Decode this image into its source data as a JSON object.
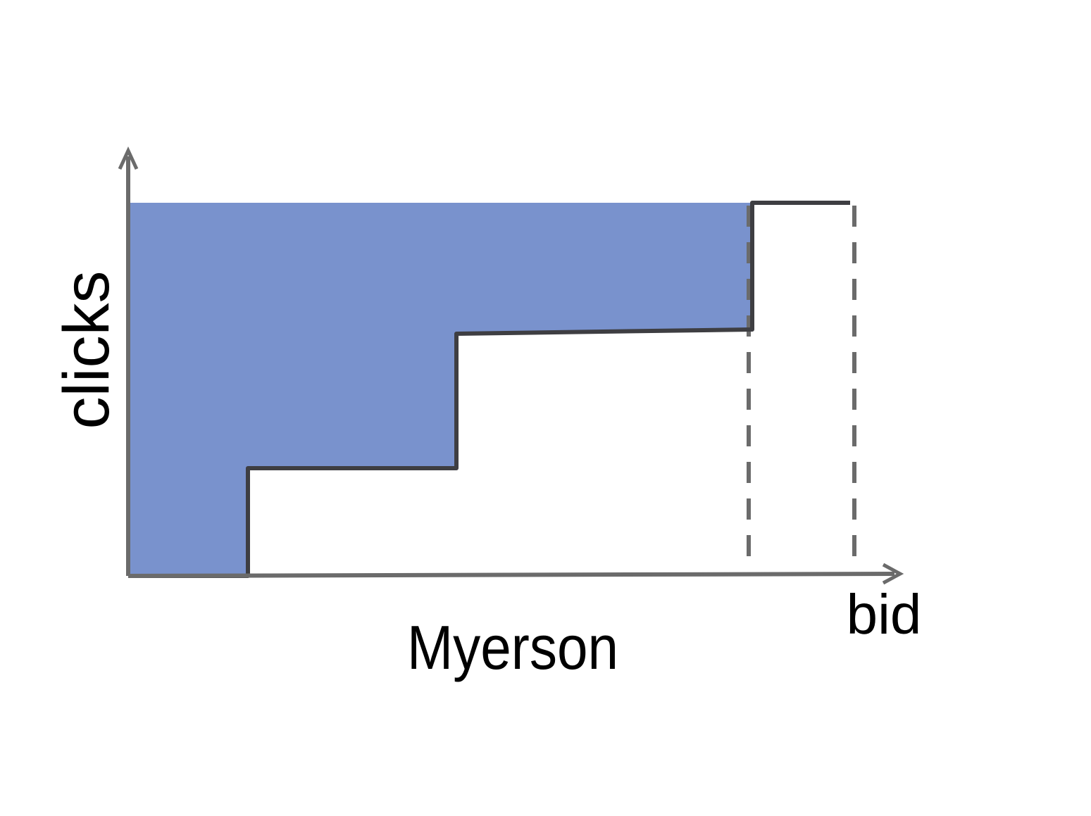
{
  "diagram": {
    "y_axis_label": "clicks",
    "x_axis_label": "bid",
    "caption": "Myerson"
  },
  "colors": {
    "shaded_region": "#7992CD",
    "step_curve": "#3E3E42",
    "axes": "#6B6B6B",
    "dashed_lines": "#6B6B6B",
    "text": "#000000"
  }
}
